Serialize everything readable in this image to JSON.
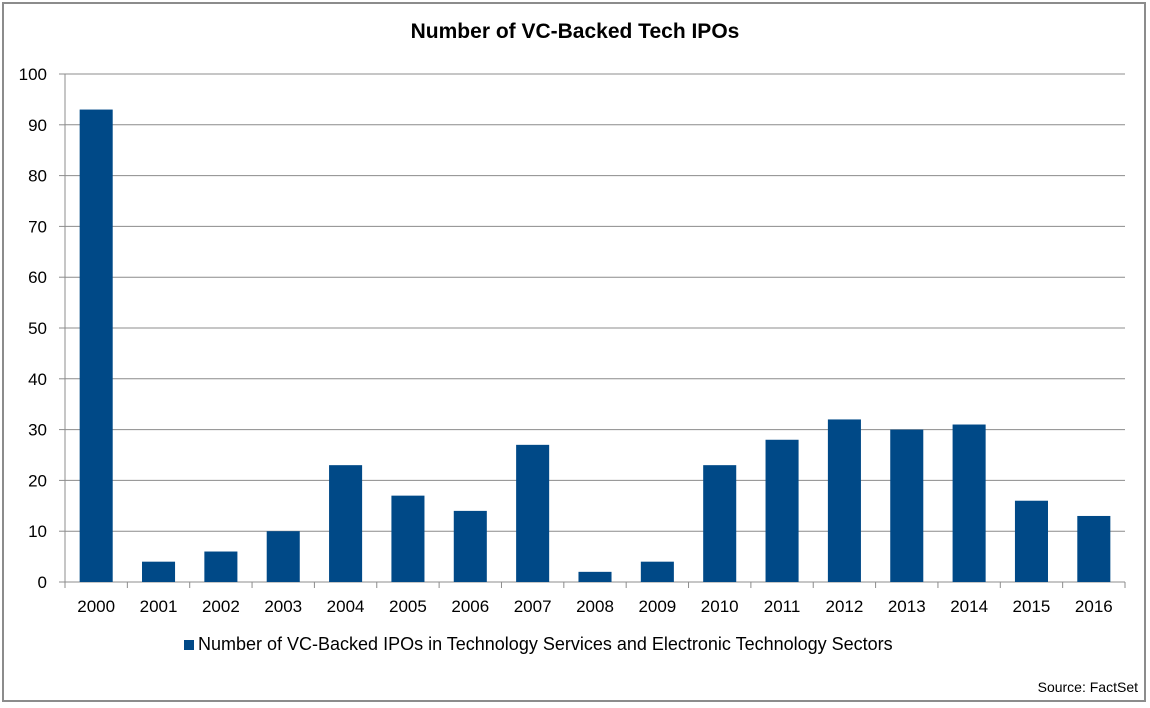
{
  "chart_data": {
    "type": "bar",
    "title": "Number of VC-Backed Tech IPOs",
    "categories": [
      "2000",
      "2001",
      "2002",
      "2003",
      "2004",
      "2005",
      "2006",
      "2007",
      "2008",
      "2009",
      "2010",
      "2011",
      "2012",
      "2013",
      "2014",
      "2015",
      "2016"
    ],
    "series": [
      {
        "name": "Number of VC-Backed IPOs in Technology Services and Electronic Technology Sectors",
        "values": [
          93,
          4,
          6,
          10,
          23,
          17,
          14,
          27,
          2,
          4,
          23,
          28,
          32,
          30,
          31,
          16,
          13
        ],
        "color": "#004987"
      }
    ],
    "ylim": [
      0,
      100
    ],
    "yticks": [
      0,
      10,
      20,
      30,
      40,
      50,
      60,
      70,
      80,
      90,
      100
    ],
    "grid": true,
    "legend": "bottom",
    "xlabel": "",
    "ylabel": ""
  },
  "source": "Source: FactSet"
}
